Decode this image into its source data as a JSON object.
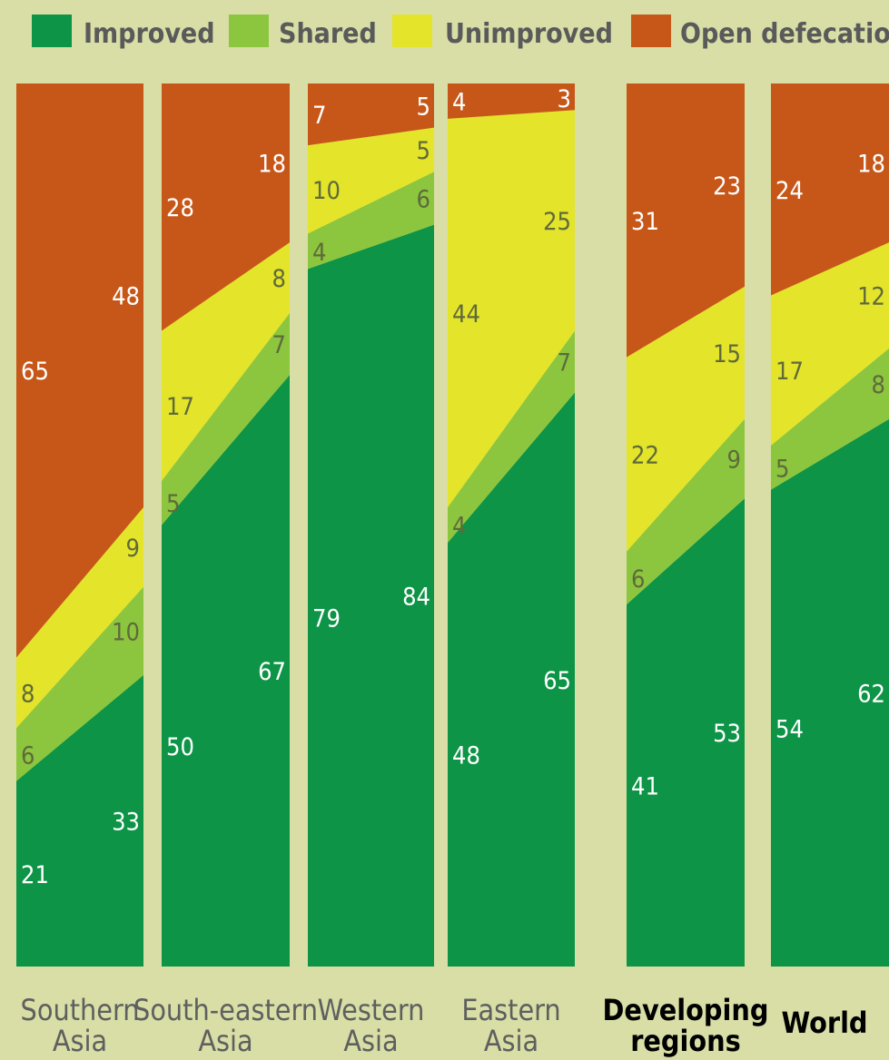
{
  "chart_data": {
    "type": "area",
    "subtype": "stacked-100-percent-slope-bars",
    "ylim": [
      0,
      100
    ],
    "grid": false,
    "legend_position": "top",
    "legend": [
      {
        "name": "Improved",
        "color": "#0d9446"
      },
      {
        "name": "Shared",
        "color": "#8cc63f"
      },
      {
        "name": "Unimproved",
        "color": "#e4e42a"
      },
      {
        "name": "Open defecation",
        "color": "#c65718"
      }
    ],
    "series_order": [
      "Improved",
      "Shared",
      "Unimproved",
      "Open defecation"
    ],
    "categories": [
      {
        "line1": "Southern",
        "line2": "Asia",
        "bold": false,
        "start": {
          "Improved": 21,
          "Shared": 6,
          "Unimproved": 8,
          "Open defecation": 65
        },
        "end": {
          "Improved": 33,
          "Shared": 10,
          "Unimproved": 9,
          "Open defecation": 48
        }
      },
      {
        "line1": "South-eastern",
        "line2": "Asia",
        "bold": false,
        "start": {
          "Improved": 50,
          "Shared": 5,
          "Unimproved": 17,
          "Open defecation": 28
        },
        "end": {
          "Improved": 67,
          "Shared": 7,
          "Unimproved": 8,
          "Open defecation": 18
        }
      },
      {
        "line1": "Western",
        "line2": "Asia",
        "bold": false,
        "start": {
          "Improved": 79,
          "Shared": 4,
          "Unimproved": 10,
          "Open defecation": 7
        },
        "end": {
          "Improved": 84,
          "Shared": 6,
          "Unimproved": 5,
          "Open defecation": 5
        }
      },
      {
        "line1": "Eastern",
        "line2": "Asia",
        "bold": false,
        "start": {
          "Improved": 48,
          "Shared": 4,
          "Unimproved": 44,
          "Open defecation": 4
        },
        "end": {
          "Improved": 65,
          "Shared": 7,
          "Unimproved": 25,
          "Open defecation": 3
        }
      },
      {
        "line1": "Developing",
        "line2": "regions",
        "bold": true,
        "start": {
          "Improved": 41,
          "Shared": 6,
          "Unimproved": 22,
          "Open defecation": 31
        },
        "end": {
          "Improved": 53,
          "Shared": 9,
          "Unimproved": 15,
          "Open defecation": 23
        }
      },
      {
        "line1": "World",
        "line2": "",
        "bold": true,
        "start": {
          "Improved": 54,
          "Shared": 5,
          "Unimproved": 17,
          "Open defecation": 24
        },
        "end": {
          "Improved": 62,
          "Shared": 8,
          "Unimproved": 12,
          "Open defecation": 18
        }
      }
    ]
  }
}
